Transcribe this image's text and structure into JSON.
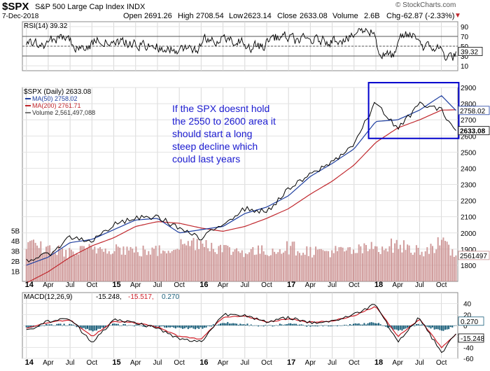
{
  "header": {
    "symbol": "$SPX",
    "name": "S&P 500 Large Cap Index",
    "exchange": "INDX",
    "date": "7-Dec-2018",
    "branding": "© StockCharts.com",
    "open_label": "Open",
    "open": "2691.26",
    "high_label": "High",
    "high": "2708.54",
    "low_label": "Low",
    "low": "2623.14",
    "close_label": "Close",
    "close": "2633.08",
    "volume_label": "Volume",
    "volume": "2.6B",
    "chg_label": "Chg",
    "chg": "-62.87 (-2.33%)",
    "chg_arrow": "▼"
  },
  "colors": {
    "price": "#000000",
    "ma50": "#1f3fa0",
    "ma200": "#c0272d",
    "volume": "#c98c8c",
    "macd_line": "#000000",
    "macd_signal": "#d0202a",
    "macd_hist": "#1a5f7a",
    "rsi_fill": "#2e7d32",
    "annotation": "#1a1ad0",
    "box": "#0000cc"
  },
  "chart_data": [
    {
      "panel": "rsi",
      "type": "line",
      "title": "RSI(14) 39.32",
      "last_value": 39.32,
      "last_label": "39.32",
      "ylim": [
        0,
        100
      ],
      "yticks": [
        10,
        30,
        50,
        70,
        90
      ],
      "ytick_labels": [
        "10",
        "30",
        "50",
        "70",
        "90"
      ],
      "reference_levels": [
        30,
        50,
        70
      ]
    },
    {
      "panel": "price",
      "type": "line",
      "title": "$SPX (Daily) 2633.08",
      "legend": [
        "MA(50) 2758.02",
        "MA(200) 2761.71",
        "Volume 2,561,497,088"
      ],
      "legend_placement": "top-left",
      "x": [
        "2014-01",
        "2014-04",
        "2014-07",
        "2014-10",
        "2015-01",
        "2015-04",
        "2015-07",
        "2015-10",
        "2016-01",
        "2016-04",
        "2016-07",
        "2016-10",
        "2017-01",
        "2017-04",
        "2017-07",
        "2017-10",
        "2018-01",
        "2018-04",
        "2018-07",
        "2018-10",
        "2018-12"
      ],
      "series": [
        {
          "name": "$SPX",
          "values": [
            1830,
            1865,
            1975,
            1950,
            2050,
            2090,
            2100,
            2030,
            1960,
            2060,
            2150,
            2130,
            2270,
            2360,
            2440,
            2550,
            2810,
            2640,
            2800,
            2760,
            2633
          ]
        },
        {
          "name": "MA(50)",
          "values": [
            1800,
            1850,
            1940,
            1960,
            2020,
            2080,
            2090,
            2000,
            2020,
            2040,
            2120,
            2160,
            2230,
            2350,
            2430,
            2520,
            2690,
            2700,
            2760,
            2850,
            2758
          ]
        },
        {
          "name": "MA(200)",
          "values": [
            1690,
            1760,
            1850,
            1920,
            1970,
            2040,
            2070,
            2060,
            2030,
            2010,
            2040,
            2090,
            2150,
            2240,
            2320,
            2420,
            2560,
            2650,
            2700,
            2760,
            2762
          ]
        }
      ],
      "volume_billions": [
        3.6,
        3.2,
        2.8,
        3.2,
        3.4,
        3.0,
        3.0,
        3.6,
        4.0,
        3.2,
        3.0,
        3.0,
        3.4,
        3.0,
        3.0,
        3.0,
        3.4,
        3.6,
        3.0,
        3.8,
        2.56
      ],
      "ylim": [
        1700,
        2900
      ],
      "yticks": [
        1800,
        1900,
        2000,
        2100,
        2200,
        2300,
        2400,
        2500,
        2600,
        2700,
        2800,
        2900
      ],
      "ytick_labels": [
        "1800",
        "1900",
        "2000",
        "2100",
        "2200",
        "2300",
        "2400",
        "2500",
        "2600",
        "2700",
        "2800",
        "2900"
      ],
      "volume_ticks": [
        1,
        2,
        3,
        4,
        5
      ],
      "volume_tick_labels": [
        "1B",
        "2B",
        "3B",
        "4B",
        "5B"
      ],
      "last_tags": [
        "2758.02",
        "2633.08",
        "2561497"
      ],
      "annotation": [
        "If the SPX doesnt hold",
        "the 2550 to 2600 area it",
        "should start a long",
        "steep decline which",
        "could last years"
      ],
      "box": {
        "x_start": "2017-12",
        "x_end": "2018-12",
        "y_low": 2585,
        "y_high": 2930
      }
    },
    {
      "panel": "macd",
      "type": "line",
      "title": "MACD(12,26,9)",
      "values_text": [
        "-15.248",
        "-15.517",
        "0.270"
      ],
      "x": [
        "2014-01",
        "2014-04",
        "2014-07",
        "2014-10",
        "2015-01",
        "2015-04",
        "2015-07",
        "2015-10",
        "2016-01",
        "2016-04",
        "2016-07",
        "2016-10",
        "2017-01",
        "2017-04",
        "2017-07",
        "2017-10",
        "2018-01",
        "2018-04",
        "2018-07",
        "2018-10",
        "2018-12"
      ],
      "series": [
        {
          "name": "MACD",
          "values": [
            -10,
            8,
            12,
            -30,
            10,
            5,
            -5,
            -25,
            -30,
            20,
            20,
            5,
            15,
            5,
            8,
            20,
            40,
            -30,
            15,
            -50,
            -15.248
          ]
        },
        {
          "name": "Signal",
          "values": [
            -5,
            6,
            10,
            -20,
            8,
            5,
            -3,
            -20,
            -25,
            15,
            18,
            6,
            12,
            6,
            8,
            18,
            35,
            -20,
            12,
            -40,
            -15.517
          ]
        },
        {
          "name": "Histogram",
          "values": [
            -5,
            2,
            2,
            -10,
            2,
            0,
            -2,
            -5,
            -5,
            5,
            2,
            -1,
            3,
            -1,
            0,
            2,
            5,
            -10,
            3,
            -10,
            0.27
          ]
        }
      ],
      "ylim": [
        -60,
        60
      ],
      "yticks": [
        -60,
        -40,
        -20,
        0,
        20,
        40
      ],
      "ytick_labels": [
        "-60",
        "-40",
        "-20",
        "0",
        "20",
        "40"
      ],
      "last_tags": [
        "0.270",
        "-15.248"
      ]
    }
  ],
  "x_axis_labels": [
    "14",
    "Apr",
    "Jul",
    "Oct",
    "15",
    "Apr",
    "Jul",
    "Oct",
    "16",
    "Apr",
    "Jul",
    "Oct",
    "17",
    "Apr",
    "Jul",
    "Oct",
    "18",
    "Apr",
    "Jul",
    "Oct"
  ],
  "x_axis_dates": [
    "2014-01",
    "2014-04",
    "2014-07",
    "2014-10",
    "2015-01",
    "2015-04",
    "2015-07",
    "2015-10",
    "2016-01",
    "2016-04",
    "2016-07",
    "2016-10",
    "2017-01",
    "2017-04",
    "2017-07",
    "2017-10",
    "2018-01",
    "2018-04",
    "2018-07",
    "2018-10"
  ],
  "x_axis_bold": [
    true,
    false,
    false,
    false,
    true,
    false,
    false,
    false,
    true,
    false,
    false,
    false,
    true,
    false,
    false,
    false,
    true,
    false,
    false,
    false
  ]
}
